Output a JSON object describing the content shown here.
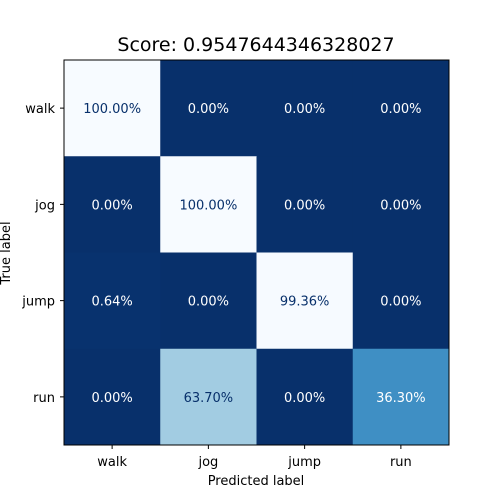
{
  "chart_data": {
    "type": "heatmap",
    "title": "Score: 0.9547644346328027",
    "xlabel": "Predicted label",
    "ylabel": "True label",
    "x_categories": [
      "walk",
      "jog",
      "jump",
      "run"
    ],
    "y_categories": [
      "walk",
      "jog",
      "jump",
      "run"
    ],
    "values": [
      [
        100.0,
        0.0,
        0.0,
        0.0
      ],
      [
        0.0,
        100.0,
        0.0,
        0.0
      ],
      [
        0.64,
        0.0,
        99.36,
        0.0
      ],
      [
        0.0,
        63.7,
        0.0,
        36.3
      ]
    ],
    "cell_labels": [
      [
        "100.00%",
        "0.00%",
        "0.00%",
        "0.00%"
      ],
      [
        "0.00%",
        "100.00%",
        "0.00%",
        "0.00%"
      ],
      [
        "0.64%",
        "0.00%",
        "99.36%",
        "0.00%"
      ],
      [
        "0.00%",
        "63.70%",
        "0.00%",
        "36.30%"
      ]
    ],
    "value_range": [
      0,
      100
    ],
    "colormap": "Blues",
    "colormap_high": "#08306b",
    "colormap_low": "#f7fbff",
    "text_color_on_dark": "#ffffff",
    "text_color_on_light": "#08306b",
    "grid": false,
    "legend": "none"
  }
}
